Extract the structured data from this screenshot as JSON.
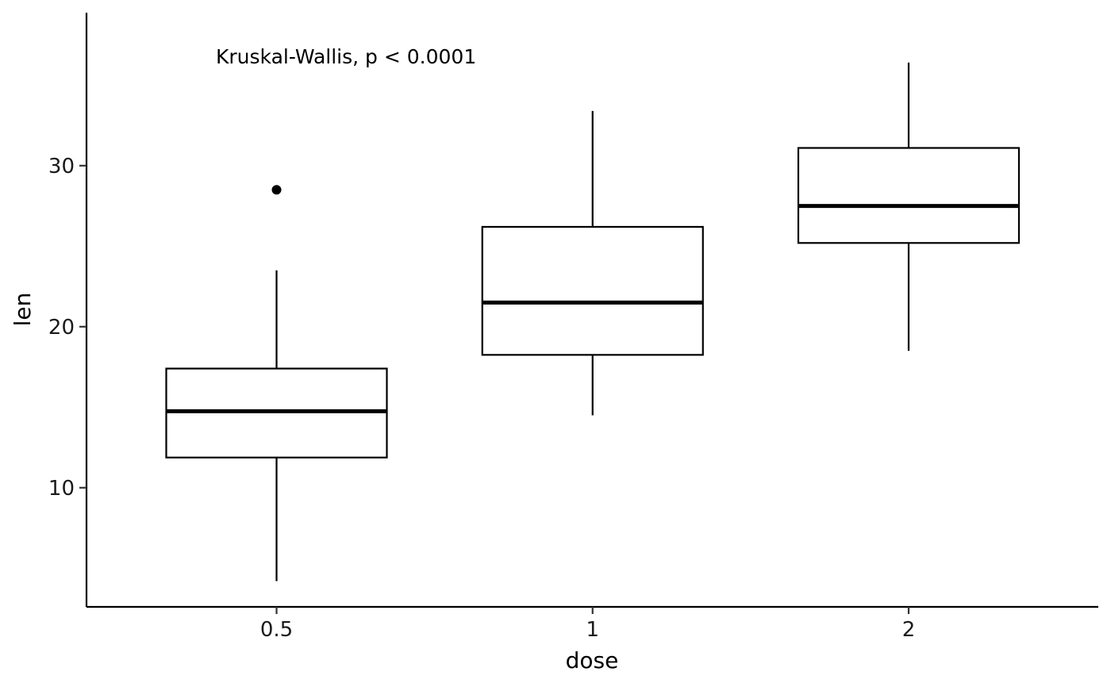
{
  "chart_data": {
    "type": "box",
    "title": "",
    "xlabel": "dose",
    "ylabel": "len",
    "annotation": "Kruskal-Wallis, p < 0.0001",
    "categories": [
      "0.5",
      "1",
      "2"
    ],
    "y_ticks": [
      10,
      20,
      30
    ],
    "ylim": [
      2.6,
      39.5
    ],
    "grid": false,
    "legend": "none",
    "colors": {
      "line": "#000000",
      "fill": "#ffffff",
      "text": "#1a1a1a"
    },
    "boxes": [
      {
        "category": "0.5",
        "whisker_low": 4.2,
        "q1": 11.875,
        "median": 14.75,
        "q3": 17.4,
        "whisker_high": 23.5,
        "outliers": [
          28.5
        ]
      },
      {
        "category": "1",
        "whisker_low": 14.5,
        "q1": 18.25,
        "median": 21.5,
        "q3": 26.2,
        "whisker_high": 33.4,
        "outliers": []
      },
      {
        "category": "2",
        "whisker_low": 18.5,
        "q1": 25.2,
        "median": 27.5,
        "q3": 31.1,
        "whisker_high": 36.4,
        "outliers": []
      }
    ]
  }
}
